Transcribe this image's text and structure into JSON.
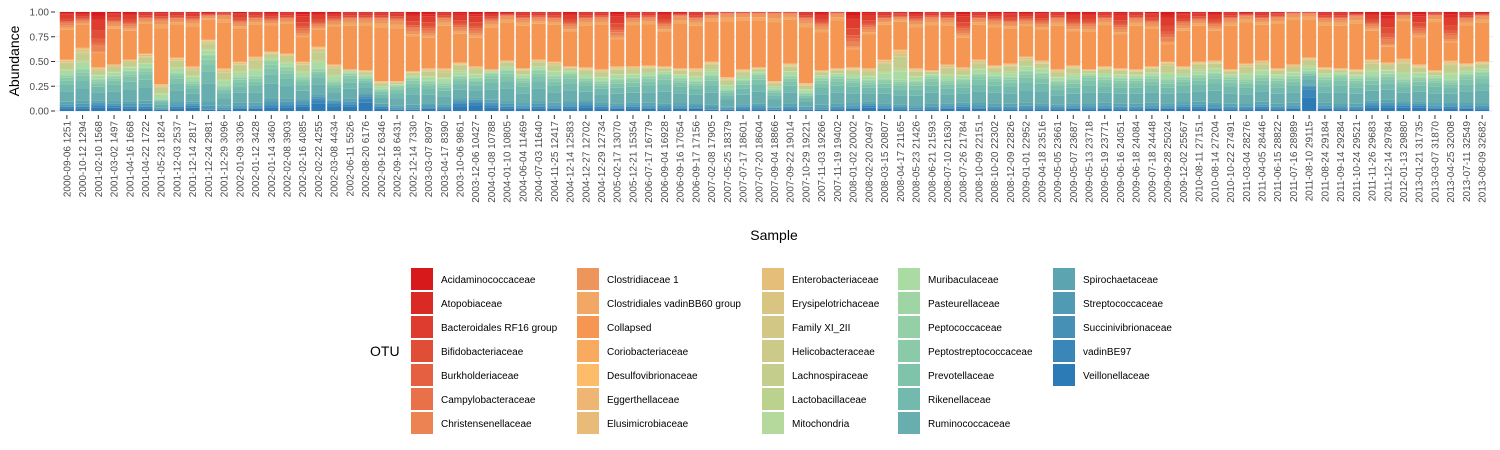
{
  "chart_data": {
    "type": "bar",
    "stacked": true,
    "xlabel": "Sample",
    "ylabel": "Abundance",
    "ylim": [
      0,
      1
    ],
    "yticks": [
      "0.00",
      "0.25",
      "0.50",
      "0.75",
      "1.00"
    ],
    "legend_title": "OTU",
    "legend_position": "bottom",
    "categories": [
      "2000-09-06 1251",
      "2000-10-12 1294",
      "2001-02-10 1568",
      "2001-03-02 1497",
      "2001-04-16 1668",
      "2001-04-22 1722",
      "2001-05-23 1824",
      "2001-12-03 2537",
      "2001-12-14 2817",
      "2001-12-24 2981",
      "2001-12-29 3096",
      "2002-01-09 3306",
      "2002-01-12 3428",
      "2002-01-14 3460",
      "2002-02-08 3903",
      "2002-02-16 4085",
      "2002-02-22 4255",
      "2002-03-08 4434",
      "2002-06-11 5526",
      "2002-08-20 6176",
      "2002-09-12 6346",
      "2002-09-18 6431",
      "2002-12-14 7330",
      "2003-03-07 8097",
      "2003-04-17 8390",
      "2003-10-06 9861",
      "2003-12-06 10427",
      "2004-01-08 10788",
      "2004-01-10 10805",
      "2004-06-04 11469",
      "2004-07-03 11640",
      "2004-11-25 12417",
      "2004-12-14 12583",
      "2004-12-27 12702",
      "2004-12-29 12734",
      "2005-02-17 13070",
      "2005-12-21 15354",
      "2006-07-17 16779",
      "2006-09-04 16928",
      "2006-09-16 17054",
      "2006-09-17 17156",
      "2007-02-08 17905",
      "2007-05-25 18379",
      "2007-07-17 18601",
      "2007-07-20 18604",
      "2007-09-04 18866",
      "2007-09-22 19014",
      "2007-10-29 19221",
      "2007-11-03 19266",
      "2007-11-19 19402",
      "2008-01-02 20002",
      "2008-02-20 20497",
      "2008-03-15 20807",
      "2008-04-17 21165",
      "2008-05-23 21426",
      "2008-06-21 21593",
      "2008-07-10 21630",
      "2008-07-26 21784",
      "2008-10-09 22151",
      "2008-10-20 22302",
      "2008-12-09 22826",
      "2009-01-01 22952",
      "2009-04-18 23516",
      "2009-05-05 23661",
      "2009-05-07 23687",
      "2009-05-13 23718",
      "2009-05-19 23771",
      "2009-06-16 24051",
      "2009-06-18 24084",
      "2009-07-18 24448",
      "2009-09-28 25024",
      "2009-12-02 25567",
      "2010-08-11 27151",
      "2010-08-14 27204",
      "2010-10-22 27491",
      "2011-03-04 28276",
      "2011-04-05 28446",
      "2011-06-15 28822",
      "2011-07-16 28989",
      "2011-08-10 29115",
      "2011-08-24 29184",
      "2011-09-14 29284",
      "2011-10-24 29521",
      "2011-11-26 29683",
      "2011-12-14 29784",
      "2012-01-13 29880",
      "2013-01-21 31735",
      "2013-03-07 31870",
      "2013-04-25 32008",
      "2013-07-11 32549",
      "2013-08-09 32682"
    ],
    "series_names": [
      "Acidaminococcaceae",
      "Atopobiaceae",
      "Bacteroidales RF16 group",
      "Bifidobacteriaceae",
      "Burkholderiaceae",
      "Campylobacteraceae",
      "Christensenellaceae",
      "Clostridiaceae 1",
      "Clostridiales vadinBB60 group",
      "Collapsed",
      "Coriobacteriaceae",
      "Desulfovibrionaceae",
      "Eggerthellaceae",
      "Elusimicrobiaceae",
      "Enterobacteriaceae",
      "Erysipelotrichaceae",
      "Family XI_2II",
      "Helicobacteraceae",
      "Lachnospiraceae",
      "Lactobacillaceae",
      "Mitochondria",
      "Muribaculaceae",
      "Pasteurellaceae",
      "Peptococcaceae",
      "Peptostreptococcaceae",
      "Prevotellaceae",
      "Rikenellaceae",
      "Ruminococcaceae",
      "Spirochaetaceae",
      "Streptococcaceae",
      "Succinivibrionaceae",
      "vadinBE97",
      "Veillonellaceae"
    ],
    "colors": [
      "#D7191C",
      "#DA2A25",
      "#DE3C2E",
      "#E14E37",
      "#E46040",
      "#E87149",
      "#EB8352",
      "#EE955B",
      "#F2A764",
      "#F59653",
      "#F8AA5E",
      "#FCBC6A",
      "#EEB672",
      "#E9BB78",
      "#E5BE7A",
      "#D9C481",
      "#D2C785",
      "#CCCA88",
      "#C5CD8C",
      "#BBD28F",
      "#B5D99C",
      "#A9DBA3",
      "#9FD5A5",
      "#95CFA7",
      "#8BCAA9",
      "#7EC3AA",
      "#73B9AD",
      "#68AEAF",
      "#5DA4B1",
      "#519AB4",
      "#4690B6",
      "#3B86B8",
      "#2C7BB6"
    ],
    "groups": {
      "blue_top_index": 33,
      "teal_top_index": 28,
      "green_top_index": 22,
      "orange_top_index": 8
    },
    "levels": {
      "blue": [
        0.05,
        0.05,
        0.07,
        0.06,
        0.05,
        0.05,
        0.02,
        0.05,
        0.06,
        0.02,
        0.02,
        0.04,
        0.04,
        0.07,
        0.07,
        0.08,
        0.13,
        0.09,
        0.08,
        0.15,
        0.05,
        0.02,
        0.02,
        0.04,
        0.03,
        0.09,
        0.1,
        0.07,
        0.05,
        0.04,
        0.05,
        0.04,
        0.05,
        0.07,
        0.05,
        0.04,
        0.05,
        0.04,
        0.03,
        0.04,
        0.04,
        0.02,
        0.02,
        0.03,
        0.03,
        0.02,
        0.03,
        0.02,
        0.02,
        0.03,
        0.04,
        0.06,
        0.04,
        0.03,
        0.02,
        0.03,
        0.04,
        0.05,
        0.04,
        0.03,
        0.03,
        0.03,
        0.03,
        0.03,
        0.04,
        0.03,
        0.04,
        0.03,
        0.03,
        0.04,
        0.04,
        0.05,
        0.05,
        0.04,
        0.03,
        0.03,
        0.05,
        0.03,
        0.04,
        0.25,
        0.04,
        0.03,
        0.03,
        0.07,
        0.07,
        0.06,
        0.06,
        0.04,
        0.05,
        0.04,
        0.03
      ],
      "teal": [
        0.36,
        0.42,
        0.32,
        0.35,
        0.4,
        0.43,
        0.12,
        0.38,
        0.3,
        0.56,
        0.25,
        0.34,
        0.35,
        0.5,
        0.44,
        0.34,
        0.42,
        0.3,
        0.38,
        0.34,
        0.22,
        0.25,
        0.33,
        0.3,
        0.28,
        0.35,
        0.33,
        0.38,
        0.41,
        0.33,
        0.41,
        0.35,
        0.38,
        0.33,
        0.3,
        0.32,
        0.33,
        0.35,
        0.37,
        0.33,
        0.3,
        0.36,
        0.22,
        0.31,
        0.37,
        0.22,
        0.35,
        0.18,
        0.33,
        0.35,
        0.33,
        0.31,
        0.32,
        0.3,
        0.3,
        0.35,
        0.31,
        0.32,
        0.37,
        0.35,
        0.34,
        0.4,
        0.38,
        0.3,
        0.32,
        0.36,
        0.34,
        0.33,
        0.33,
        0.35,
        0.32,
        0.34,
        0.36,
        0.38,
        0.34,
        0.32,
        0.36,
        0.33,
        0.35,
        0.4,
        0.34,
        0.36,
        0.33,
        0.35,
        0.37,
        0.32,
        0.34,
        0.33,
        0.31,
        0.37,
        0.39
      ],
      "green": [
        0.52,
        0.64,
        0.44,
        0.47,
        0.52,
        0.58,
        0.27,
        0.54,
        0.45,
        0.72,
        0.43,
        0.5,
        0.55,
        0.6,
        0.58,
        0.5,
        0.65,
        0.47,
        0.42,
        0.41,
        0.3,
        0.3,
        0.4,
        0.43,
        0.43,
        0.49,
        0.45,
        0.42,
        0.51,
        0.43,
        0.52,
        0.5,
        0.45,
        0.44,
        0.42,
        0.45,
        0.45,
        0.46,
        0.45,
        0.43,
        0.43,
        0.5,
        0.34,
        0.42,
        0.44,
        0.3,
        0.48,
        0.28,
        0.41,
        0.43,
        0.44,
        0.43,
        0.52,
        0.62,
        0.43,
        0.41,
        0.47,
        0.44,
        0.52,
        0.46,
        0.48,
        0.55,
        0.51,
        0.42,
        0.46,
        0.42,
        0.45,
        0.43,
        0.42,
        0.45,
        0.5,
        0.45,
        0.5,
        0.51,
        0.42,
        0.48,
        0.51,
        0.43,
        0.47,
        0.54,
        0.44,
        0.43,
        0.42,
        0.52,
        0.49,
        0.53,
        0.47,
        0.41,
        0.51,
        0.48,
        0.5
      ],
      "orange": [
        0.86,
        0.9,
        0.6,
        0.88,
        0.85,
        0.92,
        0.91,
        0.92,
        0.91,
        0.95,
        0.96,
        0.88,
        0.92,
        0.9,
        0.92,
        0.78,
        0.85,
        0.9,
        0.92,
        0.92,
        0.92,
        0.91,
        0.8,
        0.78,
        0.92,
        0.82,
        0.78,
        0.9,
        0.95,
        0.92,
        0.93,
        0.92,
        0.85,
        0.92,
        0.93,
        0.76,
        0.92,
        0.93,
        0.85,
        0.95,
        0.92,
        0.96,
        0.98,
        0.98,
        0.98,
        0.98,
        0.98,
        0.92,
        0.85,
        0.98,
        0.65,
        0.82,
        0.92,
        0.94,
        0.9,
        0.93,
        0.92,
        0.78,
        0.92,
        0.9,
        0.88,
        0.9,
        0.87,
        0.92,
        0.85,
        0.85,
        0.92,
        0.82,
        0.92,
        0.88,
        0.7,
        0.86,
        0.91,
        0.85,
        0.92,
        0.95,
        0.92,
        0.94,
        0.98,
        0.98,
        0.92,
        0.92,
        0.95,
        0.85,
        0.67,
        0.96,
        0.78,
        0.96,
        0.72,
        0.92,
        0.95
      ]
    }
  }
}
